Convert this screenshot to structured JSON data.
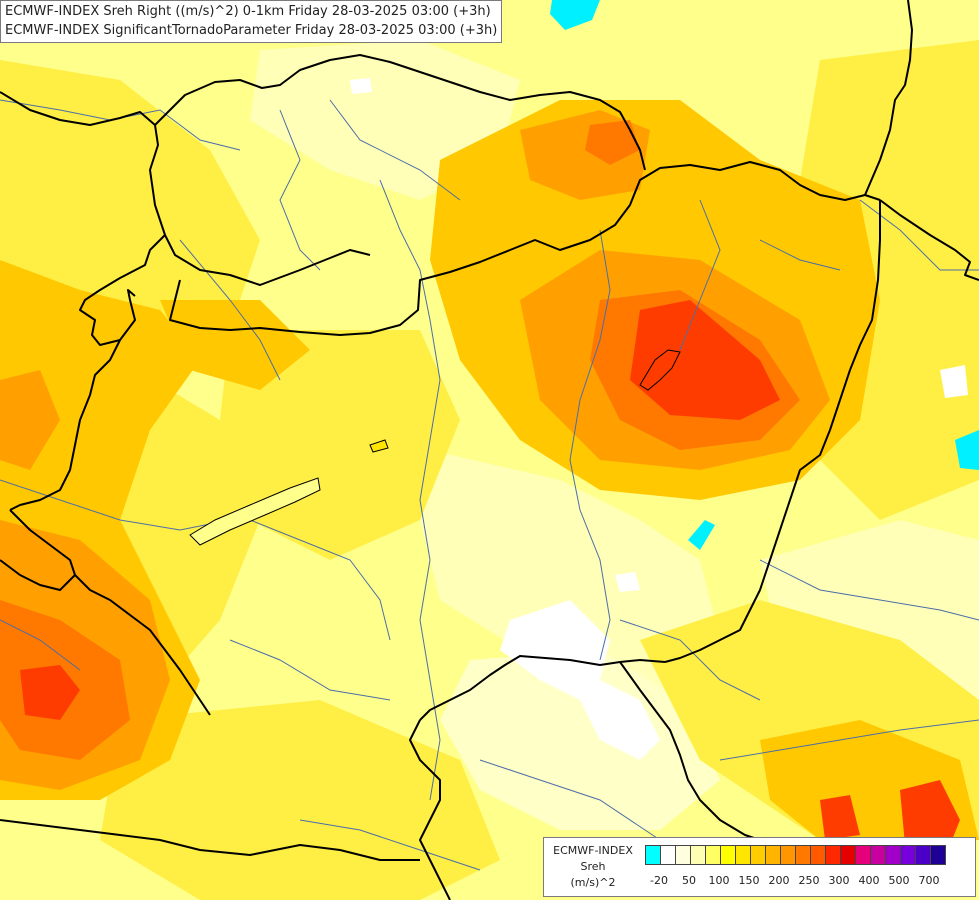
{
  "title": {
    "line1": "ECMWF-INDEX Sreh Right ((m/s)^2) 0-1km Friday 28-03-2025 03:00 (+3h)",
    "line2": "ECMWF-INDEX SignificantTornadoParameter Friday 28-03-2025 03:00 (+3h)"
  },
  "legend": {
    "line1": "ECMWF-INDEX",
    "line2": "Sreh",
    "line3": "(m/s)^2",
    "colors": [
      "#00ffff",
      "#ffffff",
      "#ffffe0",
      "#ffffb4",
      "#ffff64",
      "#ffff00",
      "#ffe600",
      "#ffcc00",
      "#ffb400",
      "#ff9600",
      "#ff7800",
      "#ff5a00",
      "#ff2800",
      "#e60000",
      "#e6007a",
      "#c800a0",
      "#a000c8",
      "#7800dc",
      "#4b00c8",
      "#1e0096"
    ],
    "ticks": [
      "-20",
      "50",
      "100",
      "150",
      "200",
      "250",
      "300",
      "400",
      "500",
      "700"
    ]
  },
  "colors": {
    "background": "#ffff8c",
    "border": "#000000",
    "river": "#4b6ea8"
  }
}
